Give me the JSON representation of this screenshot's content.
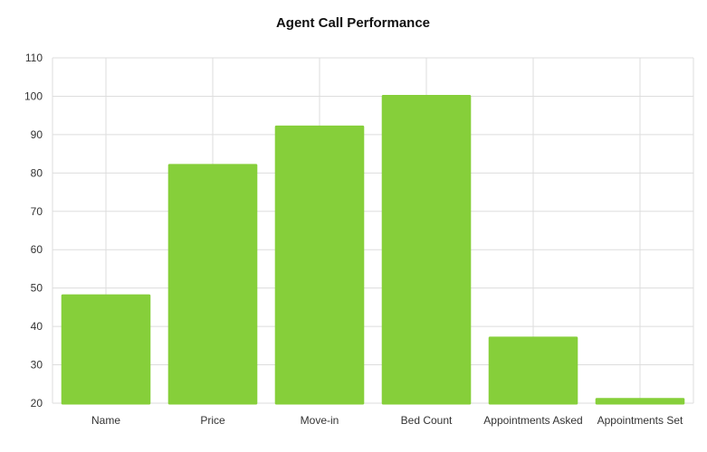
{
  "chart_data": {
    "type": "bar",
    "title": "Agent Call Performance",
    "xlabel": "",
    "ylabel": "",
    "categories": [
      "Name",
      "Price",
      "Move-in",
      "Bed Count",
      "Appointments Asked",
      "Appointments Set"
    ],
    "values": [
      48,
      82,
      92,
      100,
      37,
      21
    ],
    "ylim": [
      20,
      110
    ],
    "yticks": [
      20,
      30,
      40,
      50,
      60,
      70,
      80,
      90,
      100,
      110
    ],
    "grid": true,
    "legend": "none",
    "bar_color": "#86cf3a",
    "grid_color": "#dddddd"
  }
}
